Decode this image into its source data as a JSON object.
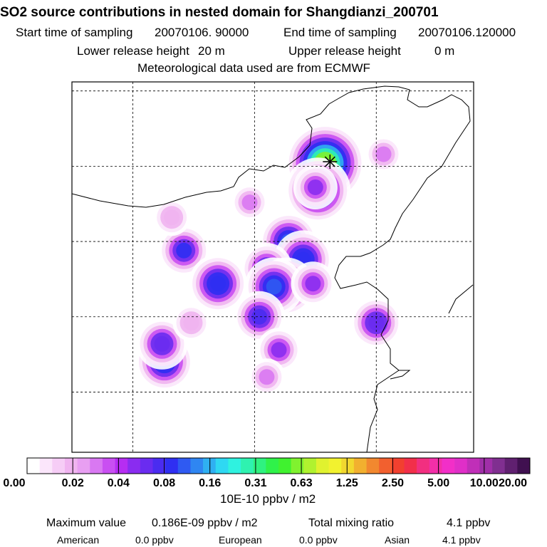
{
  "header": {
    "title": "SO2 source contributions in nested domain for Shangdianzi_200701",
    "start_label": "Start time of sampling",
    "start_value": "20070106. 90000",
    "end_label": "End time of sampling",
    "end_value": "20070106.120000",
    "lower_label": "Lower release height",
    "lower_value": "20 m",
    "upper_label": "Upper release height",
    "upper_value": "0 m",
    "met_line": "Meteorological data used are from ECMWF"
  },
  "chart_data": {
    "type": "heatmap",
    "colorbar": {
      "unit_label": "10E-10 ppbv / m2",
      "tick_labels": [
        "0.00",
        "0.02",
        "0.04",
        "0.08",
        "0.16",
        "0.31",
        "0.63",
        "1.25",
        "2.50",
        "5.00",
        "10.00",
        "20.00"
      ],
      "colors": [
        "#ffffff",
        "#fbe6fb",
        "#f6cdf6",
        "#f0b4f0",
        "#e89ff2",
        "#d978f2",
        "#c94ff2",
        "#b62df2",
        "#8a2cf0",
        "#6a2cf0",
        "#4a2cf0",
        "#2f2ff2",
        "#2f5af2",
        "#2f86f2",
        "#2fb0f2",
        "#2fd8f2",
        "#2ff2e0",
        "#2ff2b0",
        "#2ff280",
        "#2ff24a",
        "#40f22f",
        "#80f22f",
        "#b0f22f",
        "#e0f22f",
        "#f2f22f",
        "#f2d82f",
        "#f2b02f",
        "#f2882f",
        "#f2602f",
        "#f2402f",
        "#f22f4a",
        "#f22f80",
        "#f22fa8",
        "#f22fc8",
        "#e02fc8",
        "#c02fb8",
        "#a02fa8",
        "#802f90",
        "#602070",
        "#401050"
      ]
    },
    "plumes": [
      {
        "lon": 116.9,
        "lat": 40.6,
        "value": 0.6
      },
      {
        "lon": 116.6,
        "lat": 39.7,
        "value": 0.25
      },
      {
        "lon": 116.5,
        "lat": 39.8,
        "value": 0.05
      },
      {
        "lon": 115.4,
        "lat": 38.0,
        "value": 0.12
      },
      {
        "lon": 116.0,
        "lat": 37.4,
        "value": 0.1
      },
      {
        "lon": 114.5,
        "lat": 37.1,
        "value": 0.06
      },
      {
        "lon": 115.3,
        "lat": 36.5,
        "value": 0.15
      },
      {
        "lon": 114.8,
        "lat": 36.5,
        "value": 0.12
      },
      {
        "lon": 116.4,
        "lat": 36.6,
        "value": 0.05
      },
      {
        "lon": 111.1,
        "lat": 37.7,
        "value": 0.09
      },
      {
        "lon": 112.5,
        "lat": 36.6,
        "value": 0.1
      },
      {
        "lon": 114.2,
        "lat": 35.5,
        "value": 0.07
      },
      {
        "lon": 119.0,
        "lat": 35.3,
        "value": 0.06
      },
      {
        "lon": 110.3,
        "lat": 34.0,
        "value": 0.1
      },
      {
        "lon": 115.0,
        "lat": 34.4,
        "value": 0.05
      },
      {
        "lon": 110.2,
        "lat": 34.6,
        "value": 0.06
      },
      {
        "lon": 114.5,
        "lat": 33.5,
        "value": 0.03
      },
      {
        "lon": 113.8,
        "lat": 39.3,
        "value": 0.03
      },
      {
        "lon": 110.6,
        "lat": 38.8,
        "value": 0.02
      },
      {
        "lon": 119.3,
        "lat": 40.9,
        "value": 0.03
      },
      {
        "lon": 111.4,
        "lat": 35.3,
        "value": 0.02
      }
    ],
    "receptor": {
      "lon": 117.1,
      "lat": 40.65
    },
    "gridlines": true
  },
  "footer": {
    "max_label": "Maximum value",
    "max_value": "0.186E-09 ppbv / m2",
    "total_label": "Total mixing ratio",
    "total_value": "4.1 ppbv",
    "american_label": "American",
    "american_value": "0.0 ppbv",
    "european_label": "European",
    "european_value": "0.0 ppbv",
    "asian_label": "Asian",
    "asian_value": "4.1 ppbv"
  }
}
